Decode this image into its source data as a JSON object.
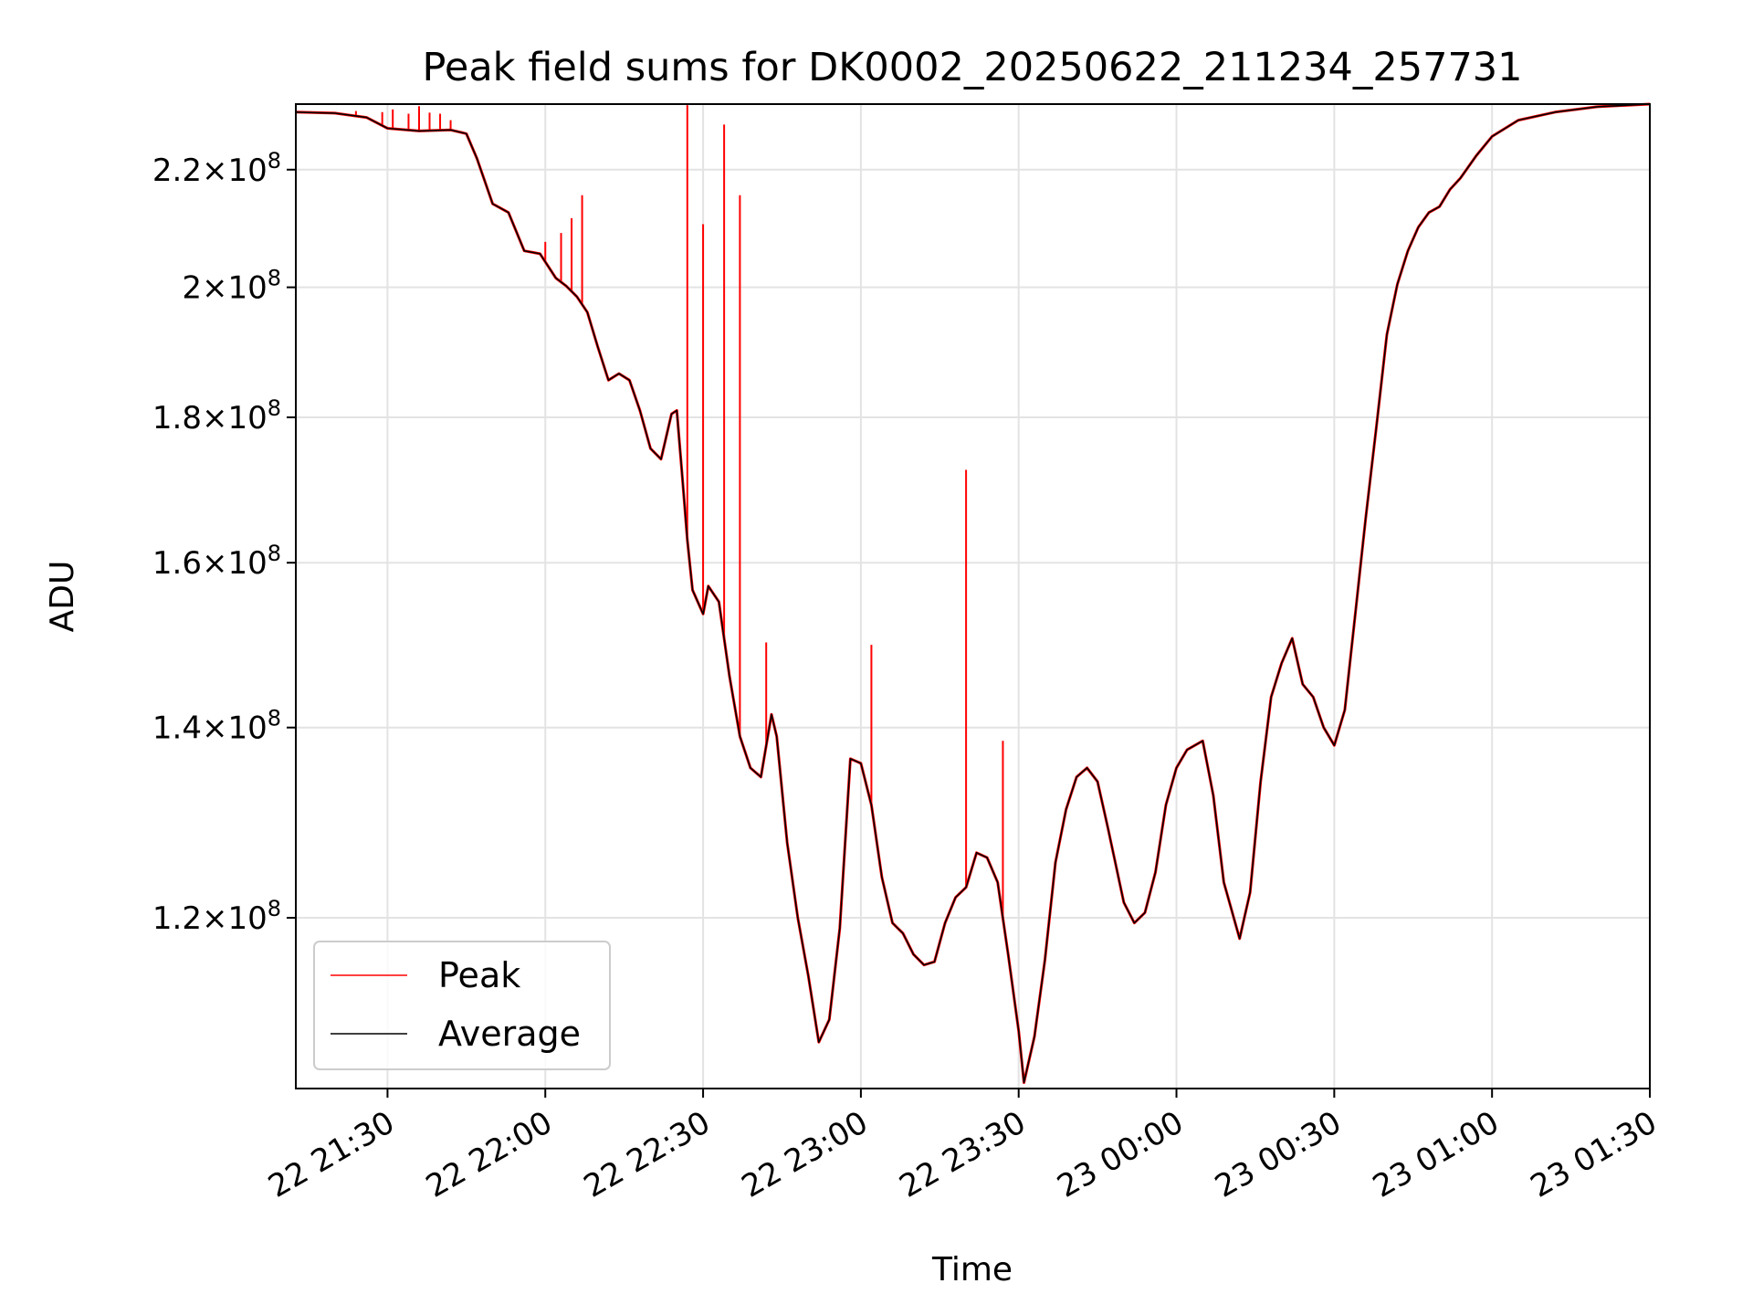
{
  "chart_data": {
    "type": "line",
    "title": "Peak field sums for DK0002_20250622_211234_257731",
    "xlabel": "Time",
    "ylabel": "ADU",
    "y_scale": "log",
    "grid": true,
    "legend_position": "lower-left",
    "xlim": [
      "2025-06-22 21:12:34",
      "2025-06-23 01:30:00"
    ],
    "ylim": [
      104500000,
      232000000
    ],
    "x_ticks": [
      {
        "t": "2025-06-22 21:30",
        "label": "22 21:30"
      },
      {
        "t": "2025-06-22 22:00",
        "label": "22 22:00"
      },
      {
        "t": "2025-06-22 22:30",
        "label": "22 22:30"
      },
      {
        "t": "2025-06-22 23:00",
        "label": "22 23:00"
      },
      {
        "t": "2025-06-22 23:30",
        "label": "22 23:30"
      },
      {
        "t": "2025-06-23 00:00",
        "label": "23 00:00"
      },
      {
        "t": "2025-06-23 00:30",
        "label": "23 00:30"
      },
      {
        "t": "2025-06-23 01:00",
        "label": "23 01:00"
      },
      {
        "t": "2025-06-23 01:30",
        "label": "23 01:30"
      }
    ],
    "y_ticks": [
      {
        "value": 120000000,
        "mant": "1.2",
        "exp": "8"
      },
      {
        "value": 140000000,
        "mant": "1.4",
        "exp": "8"
      },
      {
        "value": 160000000,
        "mant": "1.6",
        "exp": "8"
      },
      {
        "value": 180000000,
        "mant": "1.8",
        "exp": "8"
      },
      {
        "value": 200000000,
        "mant": "2",
        "exp": "8"
      },
      {
        "value": 220000000,
        "mant": "2.2",
        "exp": "8"
      }
    ],
    "series": [
      {
        "name": "Peak",
        "color": "#ff0000"
      },
      {
        "name": "Average",
        "color": "#000000"
      }
    ],
    "average_curve": [
      [
        "2025-06-22 21:12:34",
        230500000
      ],
      [
        "2025-06-22 21:20",
        230300000
      ],
      [
        "2025-06-22 21:26",
        229500000
      ],
      [
        "2025-06-22 21:30",
        227500000
      ],
      [
        "2025-06-22 21:36",
        227000000
      ],
      [
        "2025-06-22 21:42",
        227200000
      ],
      [
        "2025-06-22 21:45",
        226500000
      ],
      [
        "2025-06-22 21:47",
        222000000
      ],
      [
        "2025-06-22 21:50",
        214000000
      ],
      [
        "2025-06-22 21:53",
        212500000
      ],
      [
        "2025-06-22 21:56",
        206000000
      ],
      [
        "2025-06-22 21:59",
        205500000
      ],
      [
        "2025-06-22 22:02",
        201500000
      ],
      [
        "2025-06-22 22:04",
        200200000
      ],
      [
        "2025-06-22 22:06",
        198500000
      ],
      [
        "2025-06-22 22:08",
        196000000
      ],
      [
        "2025-06-22 22:10",
        190500000
      ],
      [
        "2025-06-22 22:12",
        185500000
      ],
      [
        "2025-06-22 22:14",
        186500000
      ],
      [
        "2025-06-22 22:16",
        185500000
      ],
      [
        "2025-06-22 22:18",
        181000000
      ],
      [
        "2025-06-22 22:20",
        175500000
      ],
      [
        "2025-06-22 22:22",
        174000000
      ],
      [
        "2025-06-22 22:24",
        180500000
      ],
      [
        "2025-06-22 22:25",
        181000000
      ],
      [
        "2025-06-22 22:26",
        172000000
      ],
      [
        "2025-06-22 22:27",
        163000000
      ],
      [
        "2025-06-22 22:28",
        156500000
      ],
      [
        "2025-06-22 22:30",
        153500000
      ],
      [
        "2025-06-22 22:31",
        157000000
      ],
      [
        "2025-06-22 22:33",
        155000000
      ],
      [
        "2025-06-22 22:35",
        146000000
      ],
      [
        "2025-06-22 22:37",
        139000000
      ],
      [
        "2025-06-22 22:39",
        135500000
      ],
      [
        "2025-06-22 22:41",
        134500000
      ],
      [
        "2025-06-22 22:43",
        141500000
      ],
      [
        "2025-06-22 22:44",
        139000000
      ],
      [
        "2025-06-22 22:46",
        127500000
      ],
      [
        "2025-06-22 22:48",
        120000000
      ],
      [
        "2025-06-22 22:50",
        114500000
      ],
      [
        "2025-06-22 22:52",
        108500000
      ],
      [
        "2025-06-22 22:54",
        110500000
      ],
      [
        "2025-06-22 22:56",
        119000000
      ],
      [
        "2025-06-22 22:58",
        136500000
      ],
      [
        "2025-06-22 23:00",
        136000000
      ],
      [
        "2025-06-22 23:02",
        131500000
      ],
      [
        "2025-06-22 23:04",
        124000000
      ],
      [
        "2025-06-22 23:06",
        119500000
      ],
      [
        "2025-06-22 23:08",
        118500000
      ],
      [
        "2025-06-22 23:10",
        116500000
      ],
      [
        "2025-06-22 23:12",
        115500000
      ],
      [
        "2025-06-22 23:14",
        115800000
      ],
      [
        "2025-06-22 23:16",
        119500000
      ],
      [
        "2025-06-22 23:18",
        122000000
      ],
      [
        "2025-06-22 23:20",
        123000000
      ],
      [
        "2025-06-22 23:22",
        126500000
      ],
      [
        "2025-06-22 23:24",
        126000000
      ],
      [
        "2025-06-22 23:26",
        123500000
      ],
      [
        "2025-06-22 23:28",
        116500000
      ],
      [
        "2025-06-22 23:30",
        109500000
      ],
      [
        "2025-06-22 23:31",
        105000000
      ],
      [
        "2025-06-22 23:33",
        109000000
      ],
      [
        "2025-06-22 23:35",
        116000000
      ],
      [
        "2025-06-22 23:37",
        125500000
      ],
      [
        "2025-06-22 23:39",
        131000000
      ],
      [
        "2025-06-22 23:41",
        134500000
      ],
      [
        "2025-06-22 23:43",
        135500000
      ],
      [
        "2025-06-22 23:45",
        134000000
      ],
      [
        "2025-06-22 23:47",
        129000000
      ],
      [
        "2025-06-22 23:50",
        121500000
      ],
      [
        "2025-06-22 23:52",
        119500000
      ],
      [
        "2025-06-22 23:54",
        120500000
      ],
      [
        "2025-06-22 23:56",
        124500000
      ],
      [
        "2025-06-22 23:58",
        131500000
      ],
      [
        "2025-06-23 00:00",
        135500000
      ],
      [
        "2025-06-23 00:02",
        137500000
      ],
      [
        "2025-06-23 00:05",
        138500000
      ],
      [
        "2025-06-23 00:07",
        132500000
      ],
      [
        "2025-06-23 00:09",
        123500000
      ],
      [
        "2025-06-23 00:12",
        118000000
      ],
      [
        "2025-06-23 00:14",
        122500000
      ],
      [
        "2025-06-23 00:16",
        134000000
      ],
      [
        "2025-06-23 00:18",
        143500000
      ],
      [
        "2025-06-23 00:20",
        147500000
      ],
      [
        "2025-06-23 00:22",
        150500000
      ],
      [
        "2025-06-23 00:24",
        145000000
      ],
      [
        "2025-06-23 00:26",
        143500000
      ],
      [
        "2025-06-23 00:28",
        140000000
      ],
      [
        "2025-06-23 00:30",
        138000000
      ],
      [
        "2025-06-23 00:32",
        142000000
      ],
      [
        "2025-06-23 00:34",
        153500000
      ],
      [
        "2025-06-23 00:36",
        166000000
      ],
      [
        "2025-06-23 00:38",
        178500000
      ],
      [
        "2025-06-23 00:40",
        192500000
      ],
      [
        "2025-06-23 00:42",
        200500000
      ],
      [
        "2025-06-23 00:44",
        206000000
      ],
      [
        "2025-06-23 00:46",
        210000000
      ],
      [
        "2025-06-23 00:48",
        212500000
      ],
      [
        "2025-06-23 00:50",
        213500000
      ],
      [
        "2025-06-23 00:52",
        216500000
      ],
      [
        "2025-06-23 00:54",
        218500000
      ],
      [
        "2025-06-23 00:57",
        222500000
      ],
      [
        "2025-06-23 01:00",
        226000000
      ],
      [
        "2025-06-23 01:05",
        229000000
      ],
      [
        "2025-06-23 01:12",
        230500000
      ],
      [
        "2025-06-23 01:20",
        231500000
      ],
      [
        "2025-06-23 01:30",
        232000000
      ]
    ],
    "peak_spikes": [
      [
        "2025-06-22 21:24",
        230700000
      ],
      [
        "2025-06-22 21:29",
        230500000
      ],
      [
        "2025-06-22 21:31",
        231000000
      ],
      [
        "2025-06-22 21:34",
        230200000
      ],
      [
        "2025-06-22 21:36",
        231600000
      ],
      [
        "2025-06-22 21:38",
        230400000
      ],
      [
        "2025-06-22 21:40",
        230200000
      ],
      [
        "2025-06-22 21:42",
        229000000
      ],
      [
        "2025-06-22 22:00",
        207500000
      ],
      [
        "2025-06-22 22:03",
        209000000
      ],
      [
        "2025-06-22 22:05",
        211500000
      ],
      [
        "2025-06-22 22:07",
        215500000
      ],
      [
        "2025-06-22 22:27",
        231800000
      ],
      [
        "2025-06-22 22:30",
        210500000
      ],
      [
        "2025-06-22 22:34",
        228200000
      ],
      [
        "2025-06-22 22:37",
        215500000
      ],
      [
        "2025-06-22 22:42",
        150000000
      ],
      [
        "2025-06-22 23:02",
        149700000
      ],
      [
        "2025-06-22 23:20",
        172500000
      ],
      [
        "2025-06-22 23:27",
        138500000
      ]
    ]
  }
}
